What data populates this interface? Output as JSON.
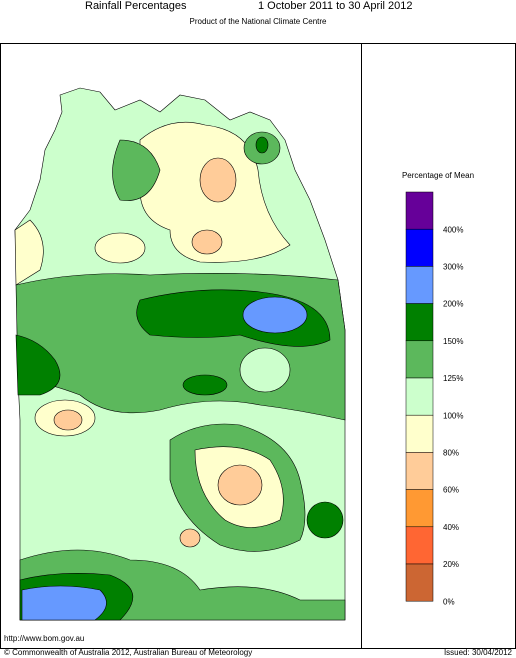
{
  "header": {
    "title": "Rainfall Percentages",
    "period": "1 October 2011 to 30 April 2012",
    "subtitle": "Product of the National Climate Centre"
  },
  "legend": {
    "title": "Percentage of Mean",
    "items": [
      {
        "label": "400%",
        "color": "#660099"
      },
      {
        "label": "300%",
        "color": "#0000ff"
      },
      {
        "label": "200%",
        "color": "#6699ff"
      },
      {
        "label": "150%",
        "color": "#008000"
      },
      {
        "label": "125%",
        "color": "#5cb85c"
      },
      {
        "label": "100%",
        "color": "#ccffcc"
      },
      {
        "label": "80%",
        "color": "#ffffcc"
      },
      {
        "label": "60%",
        "color": "#ffcc99"
      },
      {
        "label": "40%",
        "color": "#ff9933"
      },
      {
        "label": "20%",
        "color": "#ff6633"
      },
      {
        "label": "0%",
        "color": "#cc6633"
      }
    ]
  },
  "footer": {
    "url": "http://www.bom.gov.au",
    "copyright": "© Commonwealth of Australia 2012, Australian Bureau of Meteorology",
    "issued": "Issued: 30/04/2012"
  }
}
